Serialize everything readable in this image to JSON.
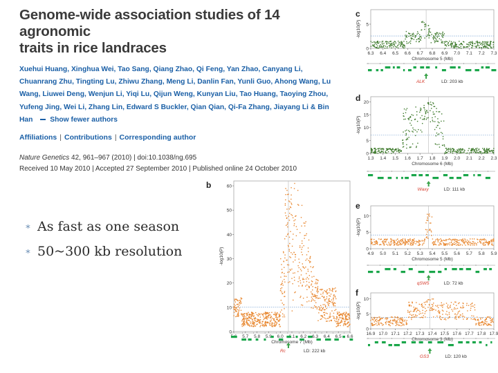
{
  "paper": {
    "title_line1": "Genome-wide association studies of 14 agronomic",
    "title_line2": "traits in rice landraces",
    "authors": [
      [
        "Xuehui Huang, Xinghua Wei, Tao Sang, Qiang Zhao, Qi Feng, Yan Zhao, Canyang Li,"
      ],
      [
        "Chuanrang Zhu, Tingting Lu, Zhiwu Zhang, Meng Li, Danlin Fan, Yunli Guo, Ahong Wang, Lu"
      ],
      [
        "Wang, Liuwei Deng, Wenjun Li, Yiqi Lu, Qijun Weng, Kunyan Liu, Tao Huang, Taoying Zhou,"
      ],
      [
        "Yufeng Jing, Wei Li, Zhang Lin, Edward S Buckler, Qian Qian, Qi-Fa Zhang, Jiayang Li &amp; Bin"
      ]
    ],
    "author_line1": "Xuehui Huang, Xinghua Wei, Tao Sang, Qiang Zhao, Qi Feng, Yan Zhao, Canyang Li,",
    "author_line2": "Chuanrang Zhu, Tingting Lu, Zhiwu Zhang, Meng Li, Danlin Fan, Yunli Guo, Ahong Wang, Lu",
    "author_line3": "Wang, Liuwei Deng, Wenjun Li, Yiqi Lu, Qijun Weng, Kunyan Liu, Tao Huang, Taoying Zhou,",
    "author_line4": "Yufeng Jing, Wei Li, Zhang Lin, Edward S Buckler, Qian Qian, Qi-Fa Zhang, Jiayang Li & Bin",
    "author_line5": "Han",
    "show_fewer": "Show fewer authors",
    "links": {
      "affiliations": "Affiliations",
      "contributions": "Contributions",
      "corresponding": "Corresponding author"
    },
    "citation_journal": "Nature Genetics",
    "citation_rest": " 42, 961–967 (2010) | doi:10.1038/ng.695",
    "received": "Received 10 May 2010 | Accepted 27 September 2010 | Published online 24 October 2010"
  },
  "bullets": [
    "As fast as one season",
    "50~300 kb resolution"
  ],
  "colors": {
    "orange": "#e8872f",
    "green": "#3e7a2c",
    "gene_green": "#1aa64a",
    "link_blue": "#1a5fa6",
    "red_label": "#d63a2b"
  },
  "chart_data": [
    {
      "panel": "b",
      "type": "scatter",
      "ylabel": "-log10(P)",
      "xlabel": "Chromosome 7 (Mb)",
      "x_ticks": [
        "5.6",
        "5.7",
        "5.8",
        "5.9",
        "6.0",
        "6.1",
        "6.2",
        "6.3",
        "6.4",
        "6.5",
        "6.6"
      ],
      "y_ticks": [
        "0",
        "10",
        "20",
        "30",
        "40",
        "50",
        "60"
      ],
      "xlim": [
        5.6,
        6.6
      ],
      "ylim": [
        0,
        62
      ],
      "gene": "Rc",
      "ld": "LD: 222 kb",
      "peak_x": 6.07
    },
    {
      "panel": "c",
      "type": "scatter",
      "ylabel": "-log10(P)",
      "xlabel": "Chromosome 5 (Mb)",
      "x_ticks": [
        "6.3",
        "6.4",
        "6.5",
        "6.6",
        "6.7",
        "6.8",
        "6.9",
        "7.0",
        "7.1",
        "7.2",
        "7.3"
      ],
      "y_ticks": [
        "0",
        "5"
      ],
      "xlim": [
        6.3,
        7.3
      ],
      "ylim": [
        0,
        8
      ],
      "gene": "ALK",
      "ld": "LD: 203 kb",
      "peak_x": 6.75
    },
    {
      "panel": "d",
      "type": "scatter",
      "ylabel": "-log10(P)",
      "xlabel": "Chromosome 6 (Mb)",
      "x_ticks": [
        "1.3",
        "1.4",
        "1.5",
        "1.6",
        "1.7",
        "1.8",
        "1.9",
        "2.0",
        "2.1",
        "2.2",
        "2.3"
      ],
      "y_ticks": [
        "0",
        "5",
        "10",
        "15",
        "20"
      ],
      "xlim": [
        1.3,
        2.3
      ],
      "ylim": [
        0,
        22
      ],
      "gene": "Waxy",
      "ld": "LD: 111 kb",
      "peak_x": 1.77
    },
    {
      "panel": "e",
      "type": "scatter",
      "ylabel": "-log10(P)",
      "xlabel": "Chromosome 5 (Mb)",
      "x_ticks": [
        "4.9",
        "5.0",
        "5.1",
        "5.2",
        "5.3",
        "5.4",
        "5.5",
        "5.6",
        "5.7",
        "5.8",
        "5.9"
      ],
      "y_ticks": [
        "0",
        "5",
        "10"
      ],
      "xlim": [
        4.9,
        5.9
      ],
      "ylim": [
        0,
        13
      ],
      "gene": "qSW5",
      "ld": "LD: 72 kb",
      "peak_x": 5.37
    },
    {
      "panel": "f",
      "type": "scatter",
      "ylabel": "-log10(P)",
      "xlabel": "Chromosome 3 (Mb)",
      "x_ticks": [
        "16.9",
        "17.0",
        "17.1",
        "17.2",
        "17.3",
        "17.4",
        "17.5",
        "17.6",
        "17.7",
        "17.8",
        "17.9"
      ],
      "y_ticks": [
        "0",
        "5",
        "10"
      ],
      "xlim": [
        16.9,
        17.9
      ],
      "ylim": [
        0,
        12
      ],
      "gene": "GS3",
      "ld": "LD: 120 kb",
      "peak_x": 17.38
    }
  ]
}
